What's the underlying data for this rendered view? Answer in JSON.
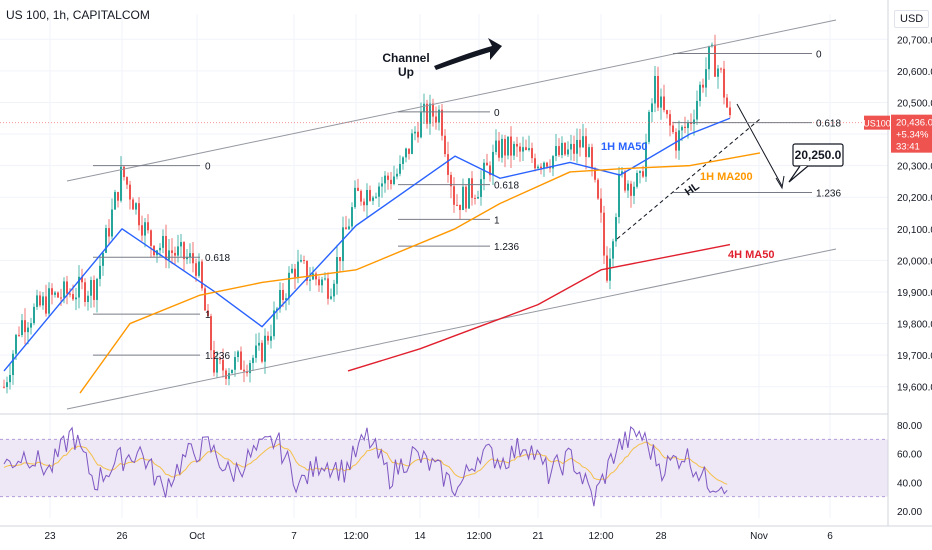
{
  "header": {
    "symbol_line": "US 100, 1h, CAPITALCOM"
  },
  "axis": {
    "currency": "USD"
  },
  "price_tag": {
    "symbol": "US100",
    "price": "20,436.0",
    "change": "+5.34%",
    "countdown": "33:41"
  },
  "annotations": {
    "channel": "Channel\nUp",
    "target": "20,250.0",
    "hl": "HL",
    "ma50_1h": "1H MA50",
    "ma200_1h": "1H MA200",
    "ma50_4h": "4H MA50"
  },
  "colors": {
    "up": "#26a69a",
    "down": "#ef5350",
    "ma50": "#2962ff",
    "ma200": "#ff9800",
    "ma4h": "#e0202e",
    "rsi": "#7e57c2",
    "rsi_ma": "#f5c04a",
    "rsi_band": "#ede7f6"
  },
  "chart_data": [
    {
      "type": "line",
      "title": "US 100, 1h, CAPITALCOM",
      "x_ticks": [
        "23",
        "26",
        "Oct",
        "7",
        "12:00",
        "14",
        "12:00",
        "21",
        "12:00",
        "28",
        "Nov",
        "6"
      ],
      "y_ticks": [
        19600,
        19700,
        19800,
        19900,
        20000,
        20100,
        20200,
        20300,
        20400,
        20500,
        20600,
        20700
      ],
      "ylim": [
        19520,
        20780
      ],
      "series": [
        {
          "name": "US 100",
          "x": [
            "23",
            "26",
            "Oct",
            "7",
            "12:00",
            "14",
            "12:00",
            "21",
            "12:00",
            "28",
            "now"
          ],
          "values": [
            19650,
            20280,
            19670,
            19900,
            20180,
            20470,
            20180,
            20380,
            20080,
            20640,
            20436
          ]
        },
        {
          "name": "1H MA50",
          "x": [
            "23",
            "26",
            "Oct",
            "7",
            "12:00",
            "14",
            "12:00",
            "21",
            "12:00",
            "28",
            "now"
          ],
          "values": [
            19650,
            20100,
            19900,
            19790,
            20110,
            20330,
            20260,
            20310,
            20270,
            20400,
            20450
          ]
        },
        {
          "name": "1H MA200",
          "x": [
            "23",
            "26",
            "Oct",
            "7",
            "12:00",
            "14",
            "12:00",
            "21",
            "12:00",
            "28",
            "now"
          ],
          "values": [
            19580,
            19800,
            19890,
            19930,
            19970,
            20100,
            20180,
            20280,
            20290,
            20300,
            20340
          ]
        },
        {
          "name": "4H MA50",
          "x": [
            "14",
            "12:00",
            "21",
            "12:00",
            "28",
            "now"
          ],
          "values": [
            19650,
            19720,
            19790,
            19860,
            19970,
            20050
          ]
        }
      ],
      "fib_labels": [
        "0",
        "0.618",
        "1",
        "1.236"
      ],
      "current_price": 20436.0
    },
    {
      "type": "line",
      "title": "",
      "y_ticks": [
        20,
        40,
        60,
        80
      ],
      "ylim": [
        15,
        85
      ],
      "band": [
        30,
        70
      ],
      "series": [
        {
          "name": "",
          "values": [
            52,
            60,
            48,
            75,
            40,
            55,
            62,
            35,
            58,
            66,
            45,
            60,
            70,
            38,
            55,
            48,
            72,
            44,
            60,
            50,
            35,
            62,
            55,
            68,
            46,
            58,
            28,
            64,
            75,
            50,
            60,
            40
          ]
        }
      ]
    }
  ]
}
